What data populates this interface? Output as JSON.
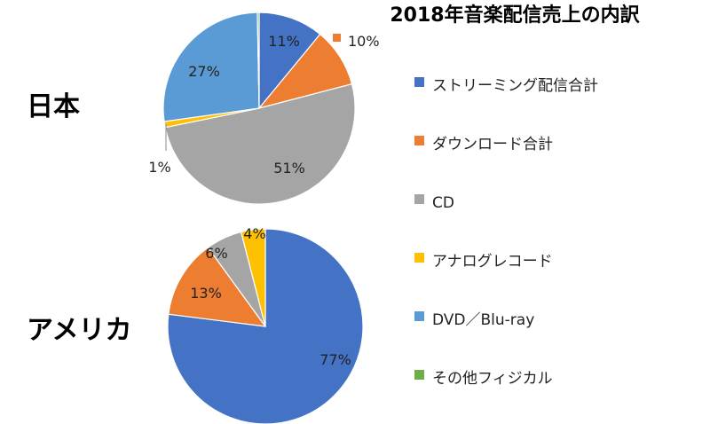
{
  "chart_data": {
    "type": "pie",
    "title": "2018年音楽配信売上の内訳",
    "categories": [
      "ストリーミング配信合計",
      "ダウンロード合計",
      "CD",
      "アナログレコード",
      "DVD／Blu-ray",
      "その他フィジカル"
    ],
    "colors": [
      "#4472C4",
      "#ED7D31",
      "#A5A5A5",
      "#FFC000",
      "#5B9BD5",
      "#70AD47"
    ],
    "legend_position": "right",
    "series": [
      {
        "name": "日本",
        "values": [
          11,
          10,
          51,
          1,
          27,
          0.3
        ],
        "labels": [
          "11%",
          "10%",
          "51%",
          "1%",
          "27%",
          ""
        ]
      },
      {
        "name": "アメリカ",
        "values": [
          77,
          13,
          6,
          4,
          0,
          0
        ],
        "labels": [
          "77%",
          "13%",
          "6%",
          "4%",
          "",
          ""
        ]
      }
    ]
  }
}
